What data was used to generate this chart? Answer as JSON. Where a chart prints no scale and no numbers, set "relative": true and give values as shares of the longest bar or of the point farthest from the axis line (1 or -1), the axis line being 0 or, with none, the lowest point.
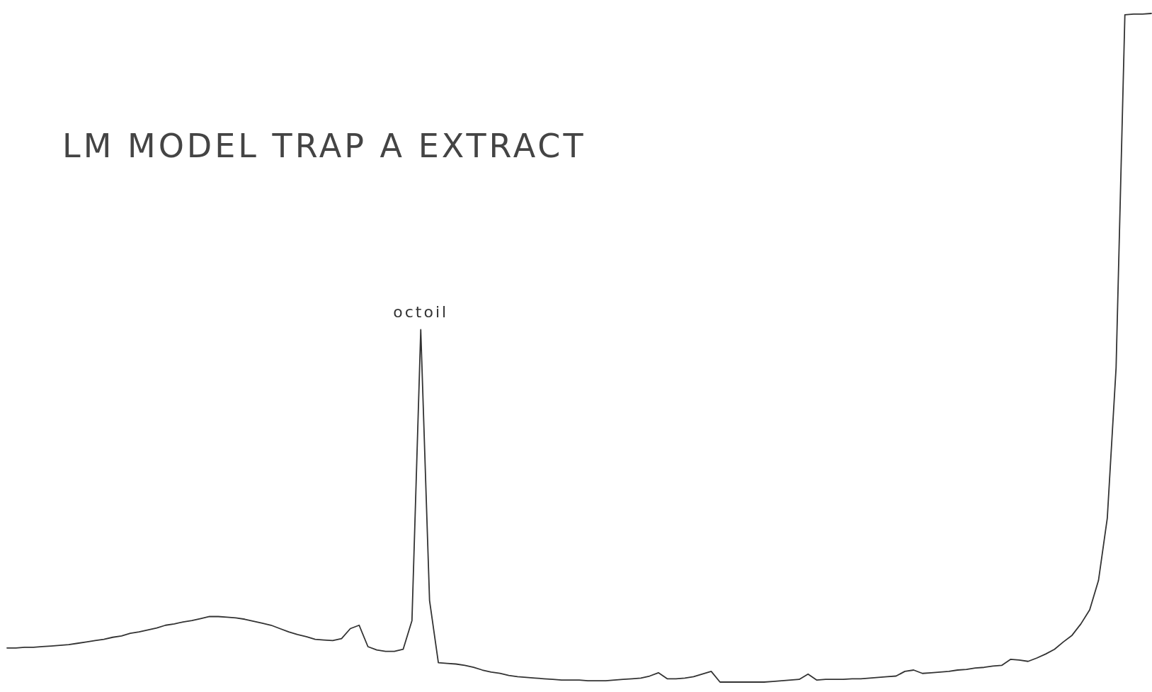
{
  "chart_data": {
    "type": "line",
    "relative": true,
    "title": "LM MODEL TRAP A EXTRACT",
    "annotations": [
      {
        "text": "octoil",
        "y": 0.527
      }
    ],
    "categories": [
      null,
      null,
      null,
      null,
      null,
      null,
      null,
      null,
      null,
      null,
      null,
      null,
      null,
      null,
      null,
      null,
      null,
      null,
      null,
      null,
      null,
      null,
      null,
      null,
      null,
      null,
      null,
      null,
      null,
      null,
      null,
      null,
      null,
      null,
      null,
      null,
      null,
      null,
      null,
      null,
      null,
      null,
      null,
      null,
      null,
      null,
      null,
      null,
      null,
      null,
      null,
      null,
      null,
      null,
      null,
      null,
      null,
      null,
      null,
      null,
      null,
      null,
      null,
      null,
      null,
      null,
      null,
      null,
      null,
      null,
      null,
      null,
      null,
      null,
      null,
      null,
      null,
      null,
      null,
      null,
      null,
      null,
      null,
      null,
      null,
      null,
      null,
      null,
      null,
      null,
      null,
      null,
      null,
      null,
      null,
      null,
      null,
      null,
      null,
      null,
      null,
      null,
      null,
      null,
      null,
      null,
      null,
      null,
      null,
      null,
      null,
      null,
      null,
      null,
      null,
      null,
      null,
      null,
      null,
      null,
      null,
      null,
      null,
      null,
      null,
      null,
      null,
      null,
      null,
      null,
      null
    ],
    "series": [
      {
        "color": "#333333",
        "values": [
          0.051,
          0.051,
          0.052,
          0.052,
          0.053,
          0.054,
          0.055,
          0.056,
          0.058,
          0.06,
          0.062,
          0.064,
          0.067,
          0.069,
          0.073,
          0.075,
          0.078,
          0.081,
          0.085,
          0.087,
          0.09,
          0.092,
          0.095,
          0.098,
          0.098,
          0.097,
          0.096,
          0.094,
          0.091,
          0.088,
          0.085,
          0.08,
          0.075,
          0.071,
          0.068,
          0.064,
          0.063,
          0.062,
          0.065,
          0.08,
          0.085,
          0.053,
          0.048,
          0.046,
          0.046,
          0.049,
          0.092,
          0.527,
          0.122,
          0.029,
          0.028,
          0.027,
          0.025,
          0.022,
          0.018,
          0.015,
          0.013,
          0.01,
          0.008,
          0.007,
          0.006,
          0.005,
          0.004,
          0.003,
          0.003,
          0.003,
          0.002,
          0.002,
          0.002,
          0.003,
          0.004,
          0.005,
          0.006,
          0.009,
          0.014,
          0.005,
          0.005,
          0.006,
          0.008,
          0.012,
          0.016,
          0,
          0,
          0,
          0,
          0,
          0,
          0.001,
          0.002,
          0.003,
          0.004,
          0.012,
          0.003,
          0.004,
          0.004,
          0.004,
          0.005,
          0.005,
          0.006,
          0.007,
          0.008,
          0.009,
          0.016,
          0.018,
          0.013,
          0.014,
          0.015,
          0.016,
          0.018,
          0.019,
          0.021,
          0.022,
          0.024,
          0.025,
          0.034,
          0.033,
          0.031,
          0.036,
          0.042,
          0.049,
          0.06,
          0.07,
          0.087,
          0.108,
          0.152,
          0.245,
          0.47,
          0.998,
          0.999,
          0.999,
          1
        ]
      }
    ],
    "tick_labels": false
  }
}
